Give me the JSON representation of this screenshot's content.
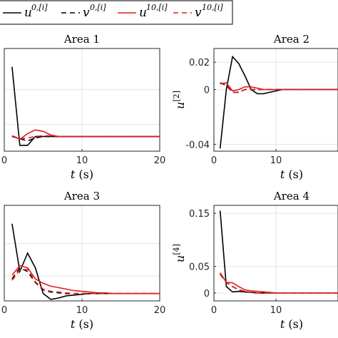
{
  "legend": {
    "entries": [
      {
        "label": "u",
        "sup": "0,[i]",
        "color": "#000000",
        "dash": "solid"
      },
      {
        "label": "v",
        "sup": "0,[i]",
        "color": "#000000",
        "dash": "dashed"
      },
      {
        "label": "u",
        "sup": "10,[i]",
        "color": "#e31a1c",
        "dash": "solid"
      },
      {
        "label": "v",
        "sup": "10,[i]",
        "color": "#e31a1c",
        "dash": "dashed"
      }
    ]
  },
  "chart_data": [
    {
      "type": "line",
      "title": "Area 1",
      "xlabel": "t (s)",
      "ylabel": "",
      "xticks": [
        "0",
        "10",
        "20"
      ],
      "yticks": [],
      "xlim": [
        0,
        20
      ],
      "ylim": [
        -0.02,
        0.12
      ],
      "grid": true,
      "series": [
        {
          "name": "u^{0,[i]}",
          "x": [
            1,
            2,
            3,
            4,
            5,
            6,
            7,
            8,
            9,
            10,
            11,
            12,
            13,
            14,
            15,
            16,
            17,
            18,
            19,
            20
          ],
          "y": [
            0.095,
            -0.012,
            -0.012,
            0.0,
            0.0,
            0.0,
            0.0,
            0.0,
            0.0,
            0.0,
            0.0,
            0.0,
            0.0,
            0.0,
            0.0,
            0.0,
            0.0,
            0.0,
            0.0,
            0.0
          ]
        },
        {
          "name": "v^{0,[i]}",
          "x": [
            1,
            2,
            3,
            4,
            5,
            6,
            7,
            8,
            9,
            10,
            11,
            12,
            13,
            14,
            15,
            16,
            17,
            18,
            19,
            20
          ],
          "y": [
            0.0,
            -0.003,
            -0.006,
            -0.002,
            0.0,
            0.0,
            0.0,
            0.0,
            0.0,
            0.0,
            0.0,
            0.0,
            0.0,
            0.0,
            0.0,
            0.0,
            0.0,
            0.0,
            0.0,
            0.0
          ]
        },
        {
          "name": "u^{10,[i]}",
          "x": [
            1,
            2,
            3,
            4,
            5,
            6,
            7,
            8,
            9,
            10,
            11,
            12,
            13,
            14,
            15,
            16,
            17,
            18,
            19,
            20
          ],
          "y": [
            0.001,
            -0.004,
            0.004,
            0.009,
            0.007,
            0.002,
            0.0,
            0.0,
            0.0,
            0.0,
            0.0,
            0.0,
            0.0,
            0.0,
            0.0,
            0.0,
            0.0,
            0.0,
            0.0,
            0.0
          ]
        },
        {
          "name": "v^{10,[i]}",
          "x": [
            1,
            2,
            3,
            4,
            5,
            6,
            7,
            8,
            9,
            10,
            11,
            12,
            13,
            14,
            15,
            16,
            17,
            18,
            19,
            20
          ],
          "y": [
            0.001,
            -0.003,
            -0.002,
            0.0,
            0.001,
            0.001,
            0.0,
            0.0,
            0.0,
            0.0,
            0.0,
            0.0,
            0.0,
            0.0,
            0.0,
            0.0,
            0.0,
            0.0,
            0.0,
            0.0
          ]
        }
      ]
    },
    {
      "type": "line",
      "title": "Area 2",
      "xlabel": "t (s)",
      "ylabel": "u^{[2]}",
      "xticks": [
        "0",
        "10"
      ],
      "yticks": [
        "0.02",
        "0",
        "-0.04"
      ],
      "xlim": [
        0,
        20
      ],
      "ylim": [
        -0.045,
        0.03
      ],
      "grid": true,
      "series": [
        {
          "name": "u^{0,[i]}",
          "x": [
            1,
            2,
            3,
            4,
            5,
            6,
            7,
            8,
            9,
            10,
            11,
            12,
            13,
            14,
            15,
            16,
            17,
            18,
            19,
            20
          ],
          "y": [
            -0.043,
            0.0,
            0.024,
            0.019,
            0.01,
            0.0,
            -0.003,
            -0.003,
            -0.002,
            -0.001,
            0.0,
            0.0,
            0.0,
            0.0,
            0.0,
            0.0,
            0.0,
            0.0,
            0.0,
            0.0
          ]
        },
        {
          "name": "v^{0,[i]}",
          "x": [
            1,
            2,
            3,
            4,
            5,
            6,
            7,
            8,
            9,
            10,
            11,
            12,
            13,
            14,
            15,
            16,
            17,
            18,
            19,
            20
          ],
          "y": [
            0.005,
            0.003,
            -0.002,
            -0.002,
            0.0,
            0.0,
            0.0,
            0.0,
            0.0,
            0.0,
            0.0,
            0.0,
            0.0,
            0.0,
            0.0,
            0.0,
            0.0,
            0.0,
            0.0,
            0.0
          ]
        },
        {
          "name": "u^{10,[i]}",
          "x": [
            1,
            2,
            3,
            4,
            5,
            6,
            7,
            8,
            9,
            10,
            11,
            12,
            13,
            14,
            15,
            16,
            17,
            18,
            19,
            20
          ],
          "y": [
            0.004,
            0.005,
            -0.001,
            0.0,
            0.002,
            0.002,
            0.001,
            0.0,
            0.0,
            0.0,
            0.0,
            0.0,
            0.0,
            0.0,
            0.0,
            0.0,
            0.0,
            0.0,
            0.0,
            0.0
          ]
        },
        {
          "name": "v^{10,[i]}",
          "x": [
            1,
            2,
            3,
            4,
            5,
            6,
            7,
            8,
            9,
            10,
            11,
            12,
            13,
            14,
            15,
            16,
            17,
            18,
            19,
            20
          ],
          "y": [
            0.005,
            0.004,
            -0.002,
            -0.002,
            0.0,
            0.0,
            0.0,
            0.0,
            0.0,
            0.0,
            0.0,
            0.0,
            0.0,
            0.0,
            0.0,
            0.0,
            0.0,
            0.0,
            0.0,
            0.0
          ]
        }
      ]
    },
    {
      "type": "line",
      "title": "Area 3",
      "xlabel": "t (s)",
      "ylabel": "",
      "xticks": [
        "0",
        "10",
        "20"
      ],
      "yticks": [],
      "xlim": [
        0,
        20
      ],
      "ylim": [
        -0.01,
        0.12
      ],
      "grid": true,
      "series": [
        {
          "name": "u^{0,[i]}",
          "x": [
            1,
            2,
            3,
            4,
            5,
            6,
            7,
            8,
            9,
            10,
            11,
            12,
            13,
            14,
            15,
            16,
            17,
            18,
            19,
            20
          ],
          "y": [
            0.095,
            0.03,
            0.055,
            0.035,
            0.0,
            -0.008,
            -0.006,
            -0.003,
            -0.002,
            -0.001,
            0.0,
            0.0,
            0.0,
            0.0,
            0.0,
            0.0,
            0.0,
            0.0,
            0.0,
            0.0
          ]
        },
        {
          "name": "v^{0,[i]}",
          "x": [
            1,
            2,
            3,
            4,
            5,
            6,
            7,
            8,
            9,
            10,
            11,
            12,
            13,
            14,
            15,
            16,
            17,
            18,
            19,
            20
          ],
          "y": [
            0.02,
            0.035,
            0.03,
            0.015,
            0.005,
            0.002,
            0.001,
            0.0,
            0.0,
            0.0,
            0.0,
            0.0,
            0.0,
            0.0,
            0.0,
            0.0,
            0.0,
            0.0,
            0.0,
            0.0
          ]
        },
        {
          "name": "u^{10,[i]}",
          "x": [
            1,
            2,
            3,
            4,
            5,
            6,
            7,
            8,
            9,
            10,
            11,
            12,
            13,
            14,
            15,
            16,
            17,
            18,
            19,
            20
          ],
          "y": [
            0.025,
            0.038,
            0.035,
            0.02,
            0.014,
            0.01,
            0.008,
            0.006,
            0.004,
            0.003,
            0.002,
            0.001,
            0.001,
            0.0,
            0.0,
            0.0,
            0.0,
            0.0,
            0.0,
            0.0
          ]
        },
        {
          "name": "v^{10,[i]}",
          "x": [
            1,
            2,
            3,
            4,
            5,
            6,
            7,
            8,
            9,
            10,
            11,
            12,
            13,
            14,
            15,
            16,
            17,
            18,
            19,
            20
          ],
          "y": [
            0.018,
            0.032,
            0.033,
            0.016,
            0.006,
            0.003,
            0.002,
            0.001,
            0.0,
            0.0,
            0.0,
            0.0,
            0.0,
            0.0,
            0.0,
            0.0,
            0.0,
            0.0,
            0.0,
            0.0
          ]
        }
      ]
    },
    {
      "type": "line",
      "title": "Area 4",
      "xlabel": "t (s)",
      "ylabel": "u^{[4]}",
      "xticks": [
        "0",
        "10"
      ],
      "yticks": [
        "0.15",
        "0.05",
        "0"
      ],
      "xlim": [
        0,
        20
      ],
      "ylim": [
        -0.015,
        0.165
      ],
      "grid": true,
      "series": [
        {
          "name": "u^{0,[i]}",
          "x": [
            1,
            2,
            3,
            4,
            5,
            6,
            7,
            8,
            9,
            10,
            11,
            12,
            13,
            14,
            15,
            16,
            17,
            18,
            19,
            20
          ],
          "y": [
            0.155,
            0.012,
            0.002,
            0.003,
            0.002,
            0.001,
            0.0,
            0.0,
            0.0,
            0.0,
            0.0,
            0.0,
            0.0,
            0.0,
            0.0,
            0.0,
            0.0,
            0.0,
            0.0,
            0.0
          ]
        },
        {
          "name": "v^{0,[i]}",
          "x": [
            1,
            2,
            3,
            4,
            5,
            6,
            7,
            8,
            9,
            10,
            11,
            12,
            13,
            14,
            15,
            16,
            17,
            18,
            19,
            20
          ],
          "y": [
            0.035,
            0.02,
            0.012,
            0.006,
            0.003,
            0.001,
            0.0,
            0.0,
            0.0,
            0.0,
            0.0,
            0.0,
            0.0,
            0.0,
            0.0,
            0.0,
            0.0,
            0.0,
            0.0,
            0.0
          ]
        },
        {
          "name": "u^{10,[i]}",
          "x": [
            1,
            2,
            3,
            4,
            5,
            6,
            7,
            8,
            9,
            10,
            11,
            12,
            13,
            14,
            15,
            16,
            17,
            18,
            19,
            20
          ],
          "y": [
            0.038,
            0.02,
            0.019,
            0.012,
            0.006,
            0.004,
            0.003,
            0.002,
            0.001,
            0.0,
            0.0,
            0.0,
            0.0,
            0.0,
            0.0,
            0.0,
            0.0,
            0.0,
            0.0,
            0.0
          ]
        },
        {
          "name": "v^{10,[i]}",
          "x": [
            1,
            2,
            3,
            4,
            5,
            6,
            7,
            8,
            9,
            10,
            11,
            12,
            13,
            14,
            15,
            16,
            17,
            18,
            19,
            20
          ],
          "y": [
            0.036,
            0.02,
            0.012,
            0.006,
            0.003,
            0.001,
            0.0,
            0.0,
            0.0,
            0.0,
            0.0,
            0.0,
            0.0,
            0.0,
            0.0,
            0.0,
            0.0,
            0.0,
            0.0,
            0.0
          ]
        }
      ]
    }
  ]
}
